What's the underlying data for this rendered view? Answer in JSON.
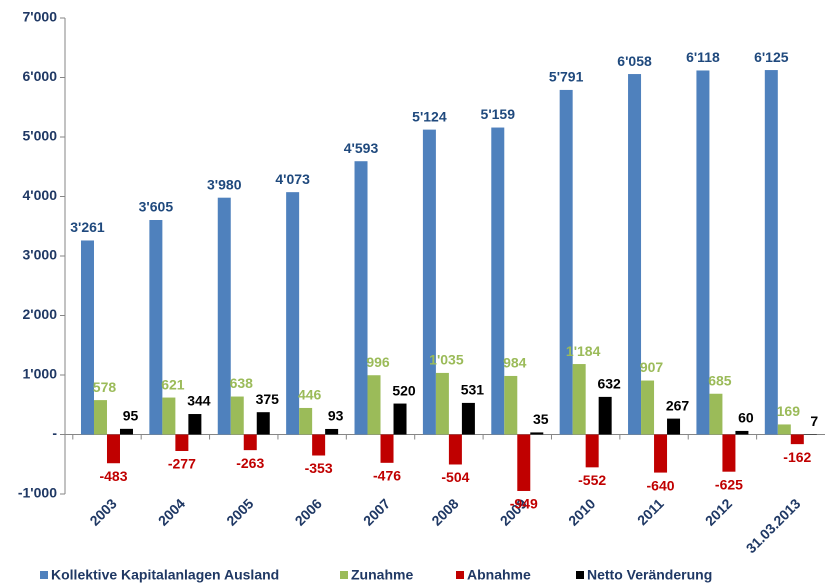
{
  "chart_data": {
    "type": "bar",
    "categories": [
      "2003",
      "2004",
      "2005",
      "2006",
      "2007",
      "2008",
      "2009",
      "2010",
      "2011",
      "2012",
      "31.03.2013"
    ],
    "series": [
      {
        "name": "Kollektive Kapitalanlagen Ausland",
        "color": "#4f81bd",
        "label_color": "#1f497d",
        "values": [
          3261,
          3605,
          3980,
          4073,
          4593,
          5124,
          5159,
          5791,
          6058,
          6118,
          6125
        ],
        "value_labels": [
          "3'261",
          "3'605",
          "3'980",
          "4'073",
          "4'593",
          "5'124",
          "5'159",
          "5'791",
          "6'058",
          "6'118",
          "6'125"
        ]
      },
      {
        "name": "Zunahme",
        "color": "#9bbb59",
        "label_color": "#9bbb59",
        "values": [
          578,
          621,
          638,
          446,
          996,
          1035,
          984,
          1184,
          907,
          685,
          169
        ],
        "value_labels": [
          "578",
          "621",
          "638",
          "446",
          "996",
          "1'035",
          "984",
          "1'184",
          "907",
          "685",
          "169"
        ]
      },
      {
        "name": "Abnahme",
        "color": "#c00000",
        "label_color": "#c00000",
        "values": [
          -483,
          -277,
          -263,
          -353,
          -476,
          -504,
          -949,
          -552,
          -640,
          -625,
          -162
        ]
      },
      {
        "name": "Netto Veränderung",
        "color": "#000000",
        "label_color": "#000000",
        "values": [
          95,
          344,
          375,
          93,
          520,
          531,
          35,
          632,
          267,
          60,
          7
        ]
      }
    ],
    "ylim": [
      -1000,
      7000
    ],
    "yticks": [
      {
        "value": -1000,
        "label": "-1'000"
      },
      {
        "value": 0,
        "label": "-"
      },
      {
        "value": 1000,
        "label": "1'000"
      },
      {
        "value": 2000,
        "label": "2'000"
      },
      {
        "value": 3000,
        "label": "3'000"
      },
      {
        "value": 4000,
        "label": "4'000"
      },
      {
        "value": 5000,
        "label": "5'000"
      },
      {
        "value": 6000,
        "label": "6'000"
      },
      {
        "value": 7000,
        "label": "7'000"
      }
    ],
    "legend": "bottom"
  }
}
